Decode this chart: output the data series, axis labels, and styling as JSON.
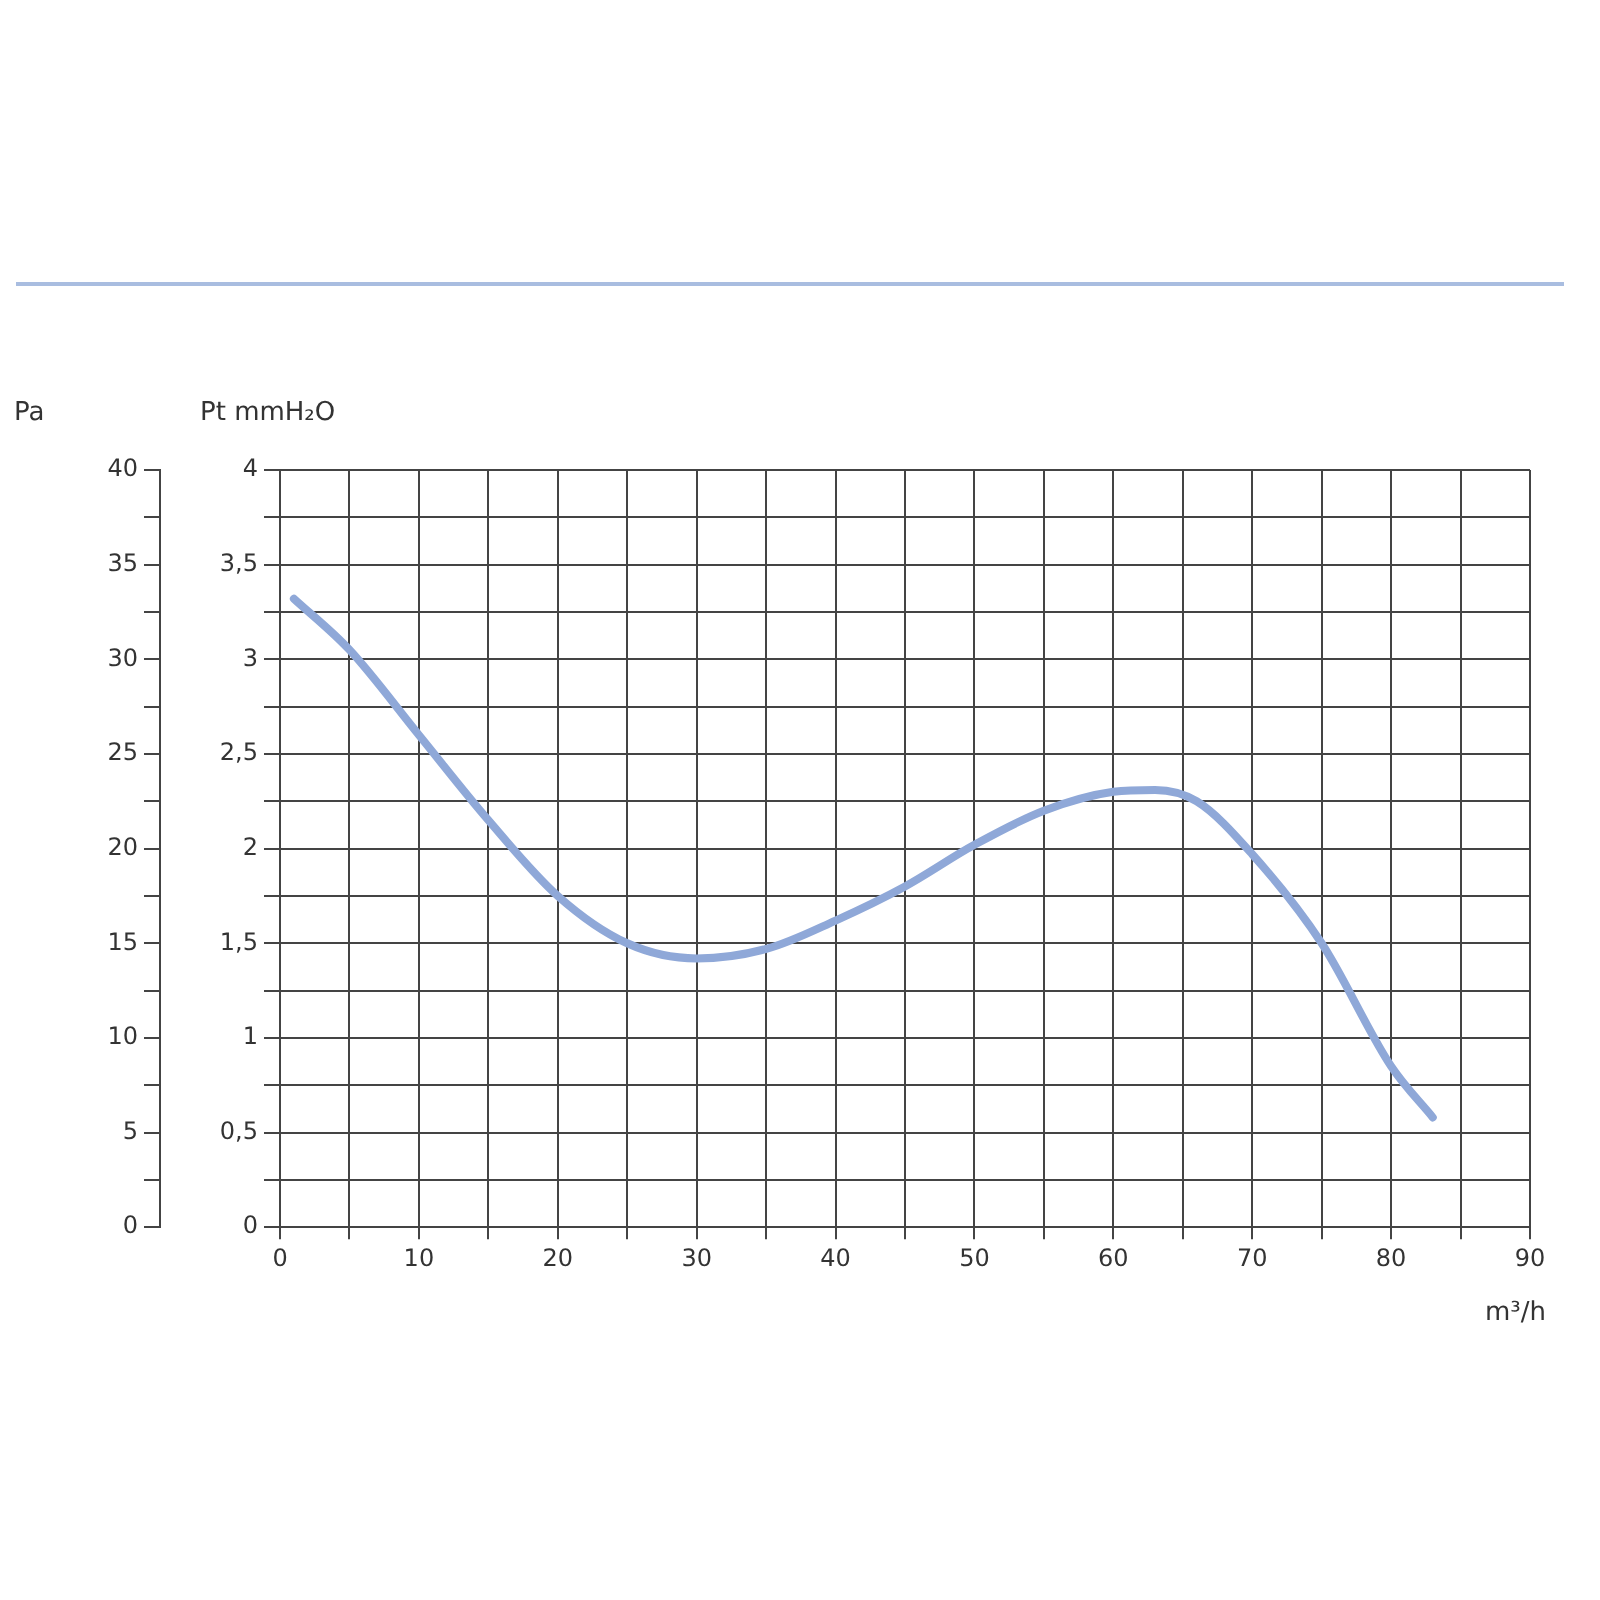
{
  "chart_data": {
    "type": "line",
    "xlabel": "m³/h",
    "ylabel": "Pt mmH₂O",
    "y2label": "Pa",
    "x": [
      1,
      5,
      10,
      15,
      20,
      25,
      30,
      35,
      40,
      45,
      50,
      55,
      60,
      63,
      66,
      70,
      75,
      80,
      83
    ],
    "series": [
      {
        "color": "#8fa8d8",
        "values": [
          3.32,
          3.05,
          2.6,
          2.15,
          1.75,
          1.5,
          1.42,
          1.47,
          1.62,
          1.8,
          2.02,
          2.2,
          2.3,
          2.31,
          2.25,
          1.97,
          1.5,
          0.85,
          0.58
        ]
      }
    ],
    "xlim": [
      0,
      90
    ],
    "xticks": [
      0,
      {
        "value": 5,
        "label": null
      },
      10,
      {
        "value": 15,
        "label": null
      },
      20,
      {
        "value": 25,
        "label": null
      },
      30,
      {
        "value": 35,
        "label": null
      },
      40,
      {
        "value": 45,
        "label": null
      },
      50,
      {
        "value": 55,
        "label": null
      },
      60,
      {
        "value": 65,
        "label": null
      },
      70,
      {
        "value": 75,
        "label": null
      },
      80,
      {
        "value": 85,
        "label": null
      },
      90
    ],
    "ylim": [
      0,
      4
    ],
    "yticks": [
      0,
      {
        "value": 0.25,
        "label": null
      },
      {
        "value": 0.5,
        "label": "0,5"
      },
      {
        "value": 0.75,
        "label": null
      },
      1,
      {
        "value": 1.25,
        "label": null
      },
      {
        "value": 1.5,
        "label": "1,5"
      },
      {
        "value": 1.75,
        "label": null
      },
      2,
      {
        "value": 2.25,
        "label": null
      },
      {
        "value": 2.5,
        "label": "2,5"
      },
      {
        "value": 2.75,
        "label": null
      },
      3,
      {
        "value": 3.25,
        "label": null
      },
      {
        "value": 3.5,
        "label": "3,5"
      },
      {
        "value": 3.75,
        "label": null
      },
      4
    ],
    "y2lim": [
      0,
      40
    ],
    "y2ticks": [
      0,
      {
        "value": 2.5,
        "label": null
      },
      5,
      {
        "value": 7.5,
        "label": null
      },
      10,
      {
        "value": 12.5,
        "label": null
      },
      15,
      {
        "value": 17.5,
        "label": null
      },
      20,
      {
        "value": 22.5,
        "label": null
      },
      25,
      {
        "value": 27.5,
        "label": null
      },
      30,
      {
        "value": 32.5,
        "label": null
      },
      35,
      {
        "value": 37.5,
        "label": null
      },
      40
    ],
    "grid": true,
    "legend": false,
    "marker": "none",
    "line_style": "solid"
  }
}
